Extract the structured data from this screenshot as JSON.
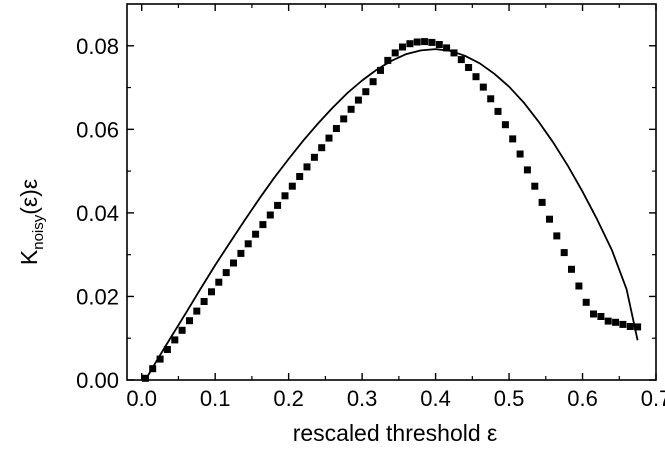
{
  "chart_data": {
    "type": "scatter",
    "title": "",
    "xlabel": "rescaled threshold ε",
    "ylabel": {
      "main": "K",
      "subscript": "noisy",
      "suffix": "(ε)ε"
    },
    "xlim": [
      -0.02,
      0.7
    ],
    "ylim": [
      0.0,
      0.09
    ],
    "xticks": [
      "0.0",
      "0.1",
      "0.2",
      "0.3",
      "0.4",
      "0.5",
      "0.6",
      "0.7"
    ],
    "xtick_values": [
      0.0,
      0.1,
      0.2,
      0.3,
      0.4,
      0.5,
      0.6,
      0.7
    ],
    "yticks": [
      "0.00",
      "0.02",
      "0.04",
      "0.06",
      "0.08"
    ],
    "ytick_values": [
      0.0,
      0.02,
      0.04,
      0.06,
      0.08
    ],
    "grid": false,
    "series": [
      {
        "kind": "markers",
        "marker": "square",
        "color": "#000000",
        "x": [
          0.005,
          0.015,
          0.025,
          0.035,
          0.045,
          0.055,
          0.065,
          0.075,
          0.085,
          0.095,
          0.105,
          0.115,
          0.125,
          0.135,
          0.145,
          0.155,
          0.165,
          0.175,
          0.185,
          0.195,
          0.205,
          0.215,
          0.225,
          0.235,
          0.245,
          0.255,
          0.265,
          0.275,
          0.285,
          0.295,
          0.305,
          0.315,
          0.325,
          0.335,
          0.345,
          0.355,
          0.365,
          0.375,
          0.385,
          0.395,
          0.405,
          0.415,
          0.425,
          0.435,
          0.445,
          0.455,
          0.465,
          0.475,
          0.485,
          0.495,
          0.505,
          0.515,
          0.525,
          0.535,
          0.545,
          0.555,
          0.565,
          0.575,
          0.585,
          0.595,
          0.605,
          0.615,
          0.625,
          0.635,
          0.645,
          0.655,
          0.665,
          0.675
        ],
        "y": [
          0.0004,
          0.0027,
          0.005,
          0.0073,
          0.0096,
          0.0119,
          0.0142,
          0.0165,
          0.0188,
          0.0211,
          0.0234,
          0.0257,
          0.028,
          0.0303,
          0.0326,
          0.0349,
          0.0372,
          0.0395,
          0.0418,
          0.0441,
          0.0464,
          0.0487,
          0.051,
          0.0533,
          0.0556,
          0.0579,
          0.0602,
          0.0625,
          0.0648,
          0.067,
          0.069,
          0.0714,
          0.0741,
          0.0765,
          0.0783,
          0.0797,
          0.0805,
          0.0809,
          0.081,
          0.0808,
          0.0803,
          0.0795,
          0.0783,
          0.0767,
          0.0748,
          0.0726,
          0.0701,
          0.0673,
          0.0643,
          0.0611,
          0.0577,
          0.0541,
          0.0503,
          0.0464,
          0.0425,
          0.0385,
          0.0345,
          0.0305,
          0.0265,
          0.0225,
          0.0186,
          0.0158,
          0.0152,
          0.0141,
          0.0138,
          0.0133,
          0.0128,
          0.0127
        ]
      },
      {
        "kind": "line",
        "color": "#000000",
        "x": [
          0.005,
          0.02,
          0.04,
          0.06,
          0.08,
          0.1,
          0.12,
          0.14,
          0.16,
          0.18,
          0.2,
          0.22,
          0.24,
          0.26,
          0.28,
          0.3,
          0.32,
          0.34,
          0.36,
          0.38,
          0.4,
          0.42,
          0.44,
          0.46,
          0.48,
          0.5,
          0.52,
          0.54,
          0.56,
          0.58,
          0.6,
          0.62,
          0.64,
          0.66,
          0.675
        ],
        "y": [
          0.0,
          0.0045,
          0.0103,
          0.016,
          0.0218,
          0.0275,
          0.0329,
          0.0382,
          0.0434,
          0.0483,
          0.0529,
          0.0573,
          0.0614,
          0.0652,
          0.0687,
          0.0717,
          0.0743,
          0.0764,
          0.078,
          0.0789,
          0.0792,
          0.0788,
          0.0776,
          0.0758,
          0.0733,
          0.0702,
          0.0664,
          0.0619,
          0.0569,
          0.0513,
          0.0451,
          0.0384,
          0.0311,
          0.0217,
          0.0095
        ]
      }
    ]
  }
}
